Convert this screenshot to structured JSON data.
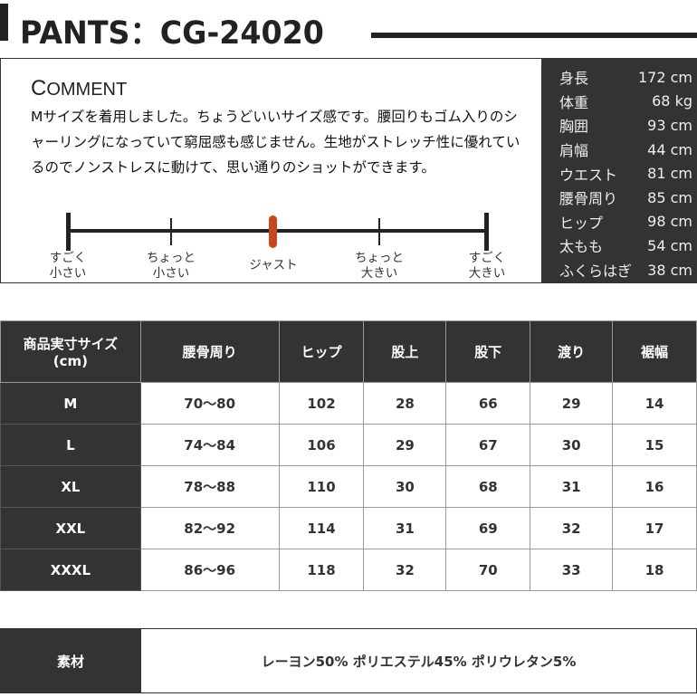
{
  "title": "PANTS：CG-24020",
  "comment": {
    "heading_initial": "C",
    "heading_rest": "OMMENT",
    "text": "Mサイズを着用しました。ちょうどいいサイズ感です。腰回りもゴム入りのシャーリングになっていて窮屈感も感じません。生地がストレッチ性に優れているのでノンストレスに動けて、思い通りのショットができます。",
    "scale": {
      "labels": [
        [
          "すごく",
          "小さい"
        ],
        [
          "ちょっと",
          "小さい"
        ],
        [
          "ジャスト",
          ""
        ],
        [
          "ちょっと",
          "大きい"
        ],
        [
          "すごく",
          "大きい"
        ]
      ],
      "selected": "ジャスト",
      "selected_color": "#c8461f"
    }
  },
  "model_stats": [
    {
      "label": "身長",
      "value": "172 cm"
    },
    {
      "label": "体重",
      "value": "68  kg"
    },
    {
      "label": "胸囲",
      "value": "93 cm"
    },
    {
      "label": "肩幅",
      "value": "44 cm"
    },
    {
      "label": "ウエスト",
      "value": "81 cm"
    },
    {
      "label": "腰骨周り",
      "value": "85 cm"
    },
    {
      "label": "ヒップ",
      "value": "98 cm"
    },
    {
      "label": "太もも",
      "value": "54 cm"
    },
    {
      "label": "ふくらはぎ",
      "value": "38 cm"
    }
  ],
  "size_table": {
    "header_line1": "商品実寸サイズ",
    "header_line2": "(cm)",
    "columns": [
      "腰骨周り",
      "ヒップ",
      "股上",
      "股下",
      "渡り",
      "裾幅"
    ],
    "rows": [
      {
        "size": "M",
        "values": [
          "70～80",
          "102",
          "28",
          "66",
          "29",
          "14"
        ]
      },
      {
        "size": "L",
        "values": [
          "74～84",
          "106",
          "29",
          "67",
          "30",
          "15"
        ]
      },
      {
        "size": "XL",
        "values": [
          "78～88",
          "110",
          "30",
          "68",
          "31",
          "16"
        ]
      },
      {
        "size": "XXL",
        "values": [
          "82～92",
          "114",
          "31",
          "69",
          "32",
          "17"
        ]
      },
      {
        "size": "XXXL",
        "values": [
          "86～96",
          "118",
          "32",
          "70",
          "33",
          "18"
        ]
      }
    ]
  },
  "material": {
    "label": "素材",
    "value": "レーヨン50% ポリエステル45% ポリウレタン5%"
  }
}
